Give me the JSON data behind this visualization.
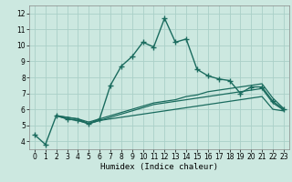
{
  "xlabel": "Humidex (Indice chaleur)",
  "bg_color": "#cce8e0",
  "line_color": "#1a6b5e",
  "grid_color": "#aad0c8",
  "xlim": [
    -0.5,
    23.5
  ],
  "ylim": [
    3.5,
    12.5
  ],
  "xticks": [
    0,
    1,
    2,
    3,
    4,
    5,
    6,
    7,
    8,
    9,
    10,
    11,
    12,
    13,
    14,
    15,
    16,
    17,
    18,
    19,
    20,
    21,
    22,
    23
  ],
  "yticks": [
    4,
    5,
    6,
    7,
    8,
    9,
    10,
    11,
    12
  ],
  "series": [
    {
      "x": [
        0,
        1,
        2,
        3,
        4,
        5,
        6,
        7,
        8,
        9,
        10,
        11,
        12,
        13,
        14,
        15,
        16,
        17,
        18,
        19,
        20,
        21,
        22,
        23
      ],
      "y": [
        4.4,
        3.8,
        5.6,
        5.4,
        5.3,
        5.1,
        5.4,
        7.5,
        8.7,
        9.3,
        10.2,
        9.9,
        11.7,
        10.2,
        10.4,
        8.5,
        8.1,
        7.9,
        7.8,
        7.0,
        7.4,
        7.4,
        6.5,
        6.0
      ],
      "marker": "+",
      "linewidth": 1.0,
      "markersize": 4
    },
    {
      "x": [
        2,
        3,
        4,
        5,
        6,
        7,
        8,
        9,
        10,
        11,
        12,
        13,
        14,
        15,
        16,
        17,
        18,
        19,
        20,
        21,
        22,
        23
      ],
      "y": [
        5.6,
        5.5,
        5.4,
        5.2,
        5.4,
        5.6,
        5.8,
        6.0,
        6.2,
        6.4,
        6.5,
        6.6,
        6.8,
        6.9,
        7.1,
        7.2,
        7.3,
        7.4,
        7.5,
        7.6,
        6.7,
        6.05
      ],
      "marker": null,
      "linewidth": 0.9,
      "markersize": 0
    },
    {
      "x": [
        2,
        3,
        4,
        5,
        6,
        7,
        8,
        9,
        10,
        11,
        12,
        13,
        14,
        15,
        16,
        17,
        18,
        19,
        20,
        21,
        22,
        23
      ],
      "y": [
        5.6,
        5.5,
        5.4,
        5.1,
        5.3,
        5.5,
        5.7,
        5.9,
        6.1,
        6.3,
        6.4,
        6.5,
        6.6,
        6.7,
        6.8,
        6.9,
        7.0,
        7.1,
        7.2,
        7.3,
        6.4,
        5.95
      ],
      "marker": null,
      "linewidth": 0.9,
      "markersize": 0
    },
    {
      "x": [
        2,
        3,
        4,
        5,
        6,
        7,
        8,
        9,
        10,
        11,
        12,
        13,
        14,
        15,
        16,
        17,
        18,
        19,
        20,
        21,
        22,
        23
      ],
      "y": [
        5.6,
        5.4,
        5.3,
        5.1,
        5.3,
        5.4,
        5.5,
        5.6,
        5.7,
        5.8,
        5.9,
        6.0,
        6.1,
        6.2,
        6.3,
        6.4,
        6.5,
        6.6,
        6.7,
        6.8,
        6.0,
        5.9
      ],
      "marker": null,
      "linewidth": 0.9,
      "markersize": 0
    }
  ]
}
